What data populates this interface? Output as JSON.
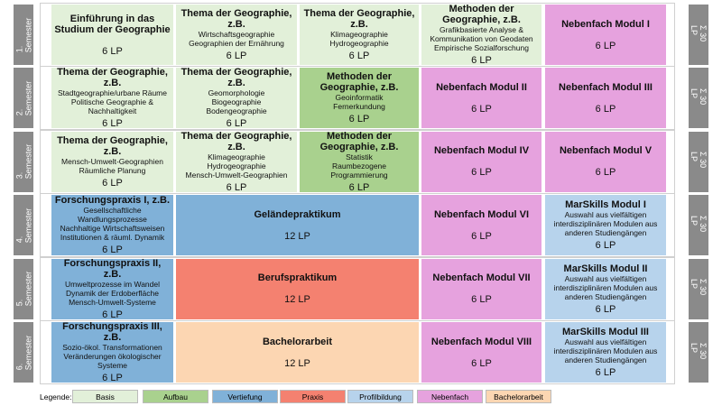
{
  "semesters": [
    {
      "label": "1. Semester",
      "sum": "Σ 30 LP",
      "modules": [
        {
          "title": "Einführung in das Studium der Geographie",
          "lines": [],
          "credits": "6 LP",
          "color": "#e2f0d9"
        },
        {
          "title": "Thema der Geographie, z.B.",
          "lines": [
            "Wirtschaftsgeographie",
            "Geographien der Ernährung"
          ],
          "credits": "6 LP",
          "color": "#e2f0d9"
        },
        {
          "title": "Thema der Geographie, z.B.",
          "lines": [
            "Klimageographie",
            "Hydrogeographie"
          ],
          "credits": "6 LP",
          "color": "#e2f0d9"
        },
        {
          "title": "Methoden der Geographie, z.B.",
          "lines": [
            "Grafikbasierte Analyse &",
            "Kommunikation von Geodaten",
            "Empirische Sozialforschung"
          ],
          "credits": "6 LP",
          "color": "#e2f0d9"
        },
        {
          "title": "Nebenfach Modul I",
          "lines": [],
          "credits": "6 LP",
          "color": "#e6a2de"
        }
      ]
    },
    {
      "label": "2. Semester",
      "sum": "Σ 30 LP",
      "modules": [
        {
          "title": "Thema der Geographie, z.B.",
          "lines": [
            "Stadtgeographie/urbane Räume",
            "Politische Geographie &",
            "Nachhaltigkeit"
          ],
          "credits": "6 LP",
          "color": "#e2f0d9"
        },
        {
          "title": "Thema der Geographie, z.B.",
          "lines": [
            "Geomorphologie",
            "Biogeographie",
            "Bodengeographie"
          ],
          "credits": "6 LP",
          "color": "#e2f0d9"
        },
        {
          "title": "Methoden der Geographie, z.B.",
          "lines": [
            "Geoinformatik",
            "Fernerkundung"
          ],
          "credits": "6 LP",
          "color": "#a9d18e"
        },
        {
          "title": "Nebenfach Modul II",
          "lines": [],
          "credits": "6 LP",
          "color": "#e6a2de"
        },
        {
          "title": "Nebenfach Modul III",
          "lines": [],
          "credits": "6 LP",
          "color": "#e6a2de"
        }
      ]
    },
    {
      "label": "3. Semester",
      "sum": "Σ 30 LP",
      "modules": [
        {
          "title": "Thema der Geographie, z.B.",
          "lines": [
            "Mensch-Umwelt-Geographien",
            "Räumliche Planung"
          ],
          "credits": "6 LP",
          "color": "#e2f0d9"
        },
        {
          "title": "Thema der Geographie, z.B.",
          "lines": [
            "Klimageographie",
            "Hydrogeographie",
            "Mensch-Umwelt-Geographien"
          ],
          "credits": "6 LP",
          "color": "#e2f0d9"
        },
        {
          "title": "Methoden der Geographie, z.B.",
          "lines": [
            "Statistik",
            "Raumbezogene",
            "Programmierung"
          ],
          "credits": "6 LP",
          "color": "#a9d18e"
        },
        {
          "title": "Nebenfach Modul IV",
          "lines": [],
          "credits": "6 LP",
          "color": "#e6a2de"
        },
        {
          "title": "Nebenfach Modul V",
          "lines": [],
          "credits": "6 LP",
          "color": "#e6a2de"
        }
      ]
    },
    {
      "label": "4. Semester",
      "sum": "Σ 30 LP",
      "modules": [
        {
          "title": "Forschungspraxis I, z.B.",
          "lines": [
            "Gesellschaftliche",
            "Wandlungsprozesse",
            "Nachhaltige Wirtschaftsweisen",
            "Institutionen & räuml. Dynamik"
          ],
          "credits": "6 LP",
          "color": "#80b1d8"
        },
        {
          "title": "Geländepraktikum",
          "lines": [],
          "credits": "12 LP",
          "color": "#80b1d8"
        },
        {
          "title": "Nebenfach Modul VI",
          "lines": [],
          "credits": "6 LP",
          "color": "#e6a2de"
        },
        {
          "title": "MarSkills Modul I",
          "lines": [
            "Auswahl aus vielfältigen",
            "interdisziplinären Modulen aus",
            "anderen Studiengängen"
          ],
          "credits": "6 LP",
          "color": "#b7d3ec"
        }
      ]
    },
    {
      "label": "5. Semester",
      "sum": "Σ 30 LP",
      "modules": [
        {
          "title": "Forschungspraxis II, z.B.",
          "lines": [
            "Umweltprozesse im Wandel",
            "Dynamik der Erdoberfläche",
            "Mensch-Umwelt-Systeme"
          ],
          "credits": "6 LP",
          "color": "#80b1d8"
        },
        {
          "title": "Berufspraktikum",
          "lines": [],
          "credits": "12 LP",
          "color": "#f48170"
        },
        {
          "title": "Nebenfach Modul VII",
          "lines": [],
          "credits": "6 LP",
          "color": "#e6a2de"
        },
        {
          "title": "MarSkills Modul II",
          "lines": [
            "Auswahl aus vielfältigen",
            "interdisziplinären Modulen aus",
            "anderen Studiengängen"
          ],
          "credits": "6 LP",
          "color": "#b7d3ec"
        }
      ]
    },
    {
      "label": "6. Semester",
      "sum": "Σ 30 LP",
      "modules": [
        {
          "title": "Forschungspraxis III, z.B.",
          "lines": [
            "Sozio-ökol. Transformationen",
            "Veränderungen ökologischer",
            "Systeme"
          ],
          "credits": "6 LP",
          "color": "#80b1d8"
        },
        {
          "title": "Bachelorarbeit",
          "lines": [],
          "credits": "12 LP",
          "color": "#fcd6b2"
        },
        {
          "title": "Nebenfach Modul VIII",
          "lines": [],
          "credits": "6 LP",
          "color": "#e6a2de"
        },
        {
          "title": "MarSkills Modul III",
          "lines": [
            "Auswahl aus vielfältigen",
            "interdisziplinären Modulen aus",
            "anderen Studiengängen"
          ],
          "credits": "6 LP",
          "color": "#b7d3ec"
        }
      ]
    }
  ],
  "legend": {
    "title": "Legende:",
    "items": [
      {
        "label": "Basis",
        "color": "#e2f0d9"
      },
      {
        "label": "Aufbau",
        "color": "#a9d18e"
      },
      {
        "label": "Vertiefung",
        "color": "#80b1d8"
      },
      {
        "label": "Praxis",
        "color": "#f48170"
      },
      {
        "label": "Profilbildung",
        "color": "#b7d3ec"
      },
      {
        "label": "Nebenfach",
        "color": "#e6a2de"
      },
      {
        "label": "Bachelorarbeit",
        "color": "#fcd6b2"
      }
    ]
  }
}
